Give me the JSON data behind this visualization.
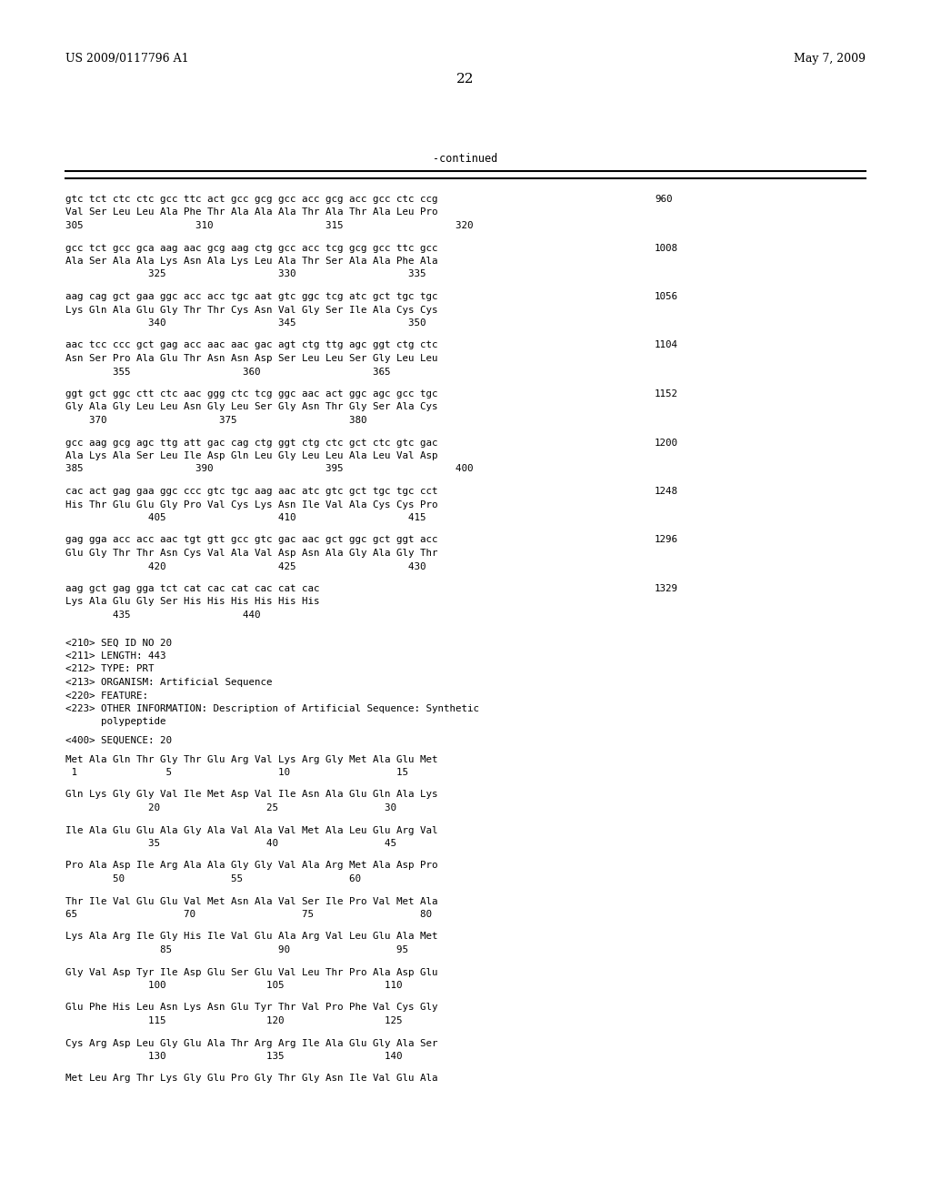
{
  "header_left": "US 2009/0117796 A1",
  "header_right": "May 7, 2009",
  "page_number": "22",
  "continued_label": "-continued",
  "background_color": "#ffffff",
  "text_color": "#000000",
  "seq_blocks": [
    {
      "dna": "gtc tct ctc ctc gcc ttc act gcc gcg gcc acc gcg acc gcc ctc ccg",
      "num": "960",
      "aa": "Val Ser Leu Leu Ala Phe Thr Ala Ala Ala Thr Ala Thr Ala Leu Pro",
      "pos": "305                   310                   315                   320"
    },
    {
      "dna": "gcc tct gcc gca aag aac gcg aag ctg gcc acc tcg gcg gcc ttc gcc",
      "num": "1008",
      "aa": "Ala Ser Ala Ala Lys Asn Ala Lys Leu Ala Thr Ser Ala Ala Phe Ala",
      "pos": "              325                   330                   335"
    },
    {
      "dna": "aag cag gct gaa ggc acc acc tgc aat gtc ggc tcg atc gct tgc tgc",
      "num": "1056",
      "aa": "Lys Gln Ala Glu Gly Thr Thr Cys Asn Val Gly Ser Ile Ala Cys Cys",
      "pos": "              340                   345                   350"
    },
    {
      "dna": "aac tcc ccc gct gag acc aac aac gac agt ctg ttg agc ggt ctg ctc",
      "num": "1104",
      "aa": "Asn Ser Pro Ala Glu Thr Asn Asn Asp Ser Leu Leu Ser Gly Leu Leu",
      "pos": "        355                   360                   365"
    },
    {
      "dna": "ggt gct ggc ctt ctc aac ggg ctc tcg ggc aac act ggc agc gcc tgc",
      "num": "1152",
      "aa": "Gly Ala Gly Leu Leu Asn Gly Leu Ser Gly Asn Thr Gly Ser Ala Cys",
      "pos": "    370                   375                   380"
    },
    {
      "dna": "gcc aag gcg agc ttg att gac cag ctg ggt ctg ctc gct ctc gtc gac",
      "num": "1200",
      "aa": "Ala Lys Ala Ser Leu Ile Asp Gln Leu Gly Leu Leu Ala Leu Val Asp",
      "pos": "385                   390                   395                   400"
    },
    {
      "dna": "cac act gag gaa ggc ccc gtc tgc aag aac atc gtc gct tgc tgc cct",
      "num": "1248",
      "aa": "His Thr Glu Glu Gly Pro Val Cys Lys Asn Ile Val Ala Cys Cys Pro",
      "pos": "              405                   410                   415"
    },
    {
      "dna": "gag gga acc acc aac tgt gtt gcc gtc gac aac gct ggc gct ggt acc",
      "num": "1296",
      "aa": "Glu Gly Thr Thr Asn Cys Val Ala Val Asp Asn Ala Gly Ala Gly Thr",
      "pos": "              420                   425                   430"
    },
    {
      "dna": "aag gct gag gga tct cat cac cat cac cat cac",
      "num": "1329",
      "aa": "Lys Ala Glu Gly Ser His His His His His His",
      "pos": "        435                   440"
    }
  ],
  "meta_lines": [
    "<210> SEQ ID NO 20",
    "<211> LENGTH: 443",
    "<212> TYPE: PRT",
    "<213> ORGANISM: Artificial Sequence",
    "<220> FEATURE:",
    "<223> OTHER INFORMATION: Description of Artificial Sequence: Synthetic",
    "      polypeptide"
  ],
  "seq400_label": "<400> SEQUENCE: 20",
  "prot_blocks": [
    {
      "aa": "Met Ala Gln Thr Gly Thr Glu Arg Val Lys Arg Gly Met Ala Glu Met",
      "pos": " 1               5                  10                  15"
    },
    {
      "aa": "Gln Lys Gly Gly Val Ile Met Asp Val Ile Asn Ala Glu Gln Ala Lys",
      "pos": "              20                  25                  30"
    },
    {
      "aa": "Ile Ala Glu Glu Ala Gly Ala Val Ala Val Met Ala Leu Glu Arg Val",
      "pos": "              35                  40                  45"
    },
    {
      "aa": "Pro Ala Asp Ile Arg Ala Ala Gly Gly Val Ala Arg Met Ala Asp Pro",
      "pos": "        50                  55                  60"
    },
    {
      "aa": "Thr Ile Val Glu Glu Val Met Asn Ala Val Ser Ile Pro Val Met Ala",
      "pos": "65                  70                  75                  80"
    },
    {
      "aa": "Lys Ala Arg Ile Gly His Ile Val Glu Ala Arg Val Leu Glu Ala Met",
      "pos": "                85                  90                  95"
    },
    {
      "aa": "Gly Val Asp Tyr Ile Asp Glu Ser Glu Val Leu Thr Pro Ala Asp Glu",
      "pos": "              100                 105                 110"
    },
    {
      "aa": "Glu Phe His Leu Asn Lys Asn Glu Tyr Thr Val Pro Phe Val Cys Gly",
      "pos": "              115                 120                 125"
    },
    {
      "aa": "Cys Arg Asp Leu Gly Glu Ala Thr Arg Arg Ile Ala Glu Gly Ala Ser",
      "pos": "              130                 135                 140"
    },
    {
      "aa": "Met Leu Arg Thr Lys Gly Glu Pro Gly Thr Gly Asn Ile Val Glu Ala",
      "pos": ""
    }
  ]
}
